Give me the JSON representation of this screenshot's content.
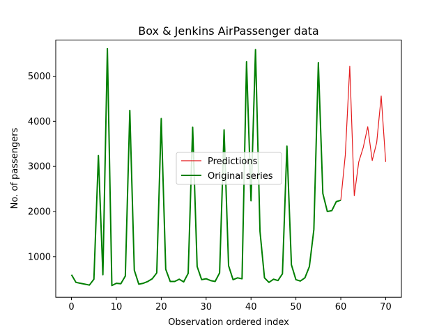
{
  "chart_data": {
    "type": "line",
    "title": "Box & Jenkins AirPassenger data",
    "xlabel": "Observation ordered index",
    "ylabel": "No. of passengers",
    "xlim": [
      -3.5,
      73.5
    ],
    "ylim": [
      100,
      5800
    ],
    "xticks": [
      0,
      10,
      20,
      30,
      40,
      50,
      60,
      70
    ],
    "yticks": [
      1000,
      2000,
      3000,
      4000,
      5000
    ],
    "grid": false,
    "legend": "center",
    "series": [
      {
        "name": "Predictions",
        "color": "#e41a1c",
        "x": [
          60,
          61,
          62,
          63,
          64,
          65,
          66,
          67,
          68,
          69,
          70
        ],
        "y": [
          2250,
          3250,
          5220,
          2350,
          3100,
          3420,
          3880,
          3130,
          3530,
          4560,
          3100
        ]
      },
      {
        "name": "Original series",
        "color": "#007f00",
        "x": [
          0,
          1,
          2,
          3,
          4,
          5,
          6,
          7,
          8,
          9,
          10,
          11,
          12,
          13,
          14,
          15,
          16,
          17,
          18,
          19,
          20,
          21,
          22,
          23,
          24,
          25,
          26,
          27,
          28,
          29,
          30,
          31,
          32,
          33,
          34,
          35,
          36,
          37,
          38,
          39,
          40,
          41,
          42,
          43,
          44,
          45,
          46,
          47,
          48,
          49,
          50,
          51,
          52,
          53,
          54,
          55,
          56,
          57,
          58,
          59,
          60
        ],
        "y": [
          600,
          430,
          410,
          390,
          370,
          500,
          3240,
          600,
          5610,
          360,
          410,
          400,
          570,
          4240,
          700,
          390,
          410,
          450,
          510,
          640,
          4060,
          720,
          450,
          450,
          500,
          440,
          630,
          3870,
          780,
          490,
          510,
          470,
          450,
          640,
          3810,
          800,
          490,
          530,
          510,
          5320,
          2240,
          5590,
          1560,
          530,
          430,
          500,
          470,
          620,
          3450,
          820,
          490,
          460,
          530,
          780,
          1600,
          5300,
          2400,
          2000,
          2020,
          2220,
          2250
        ]
      }
    ]
  }
}
